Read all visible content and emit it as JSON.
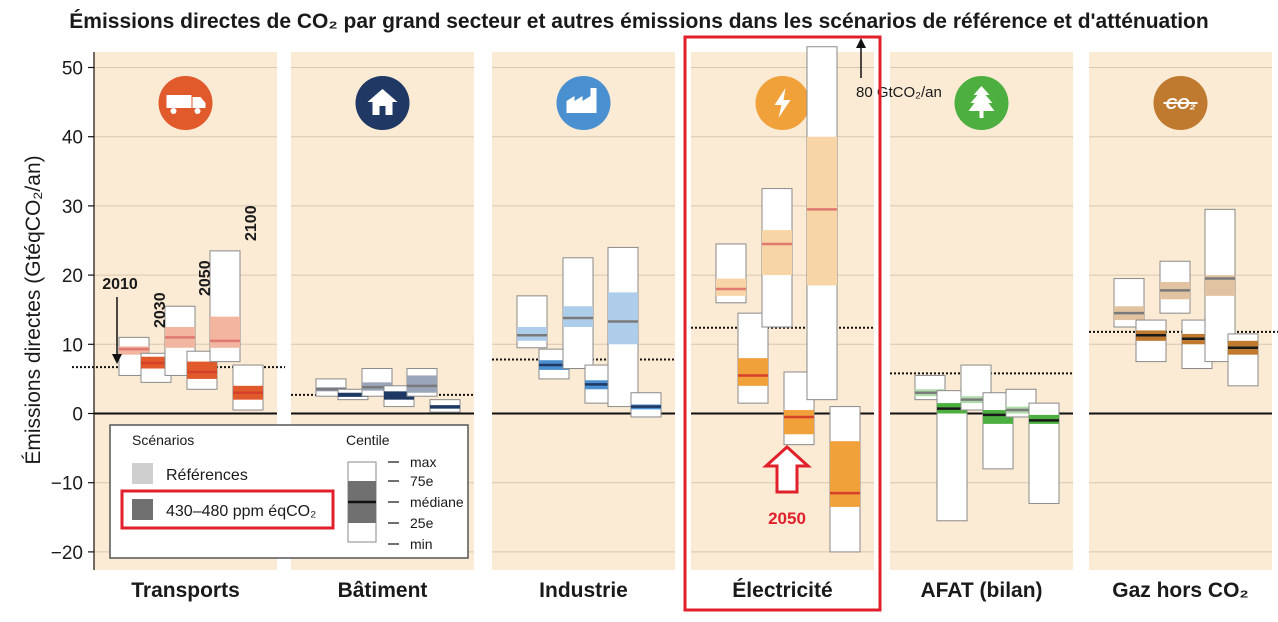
{
  "title": "Émissions directes de CO₂ par grand secteur et autres émissions dans les scénarios de référence et d'atténuation",
  "colors": {
    "panel_bg": "#fbead4",
    "highlight": "#e0202a",
    "zero_line": "#111111",
    "grid": "#d8c8b0"
  },
  "chart_data": {
    "type": "boxplot",
    "title": "Émissions directes de CO₂ par grand secteur et autres émissions dans les scénarios de référence et d'atténuation",
    "ylabel": "Émissions directes (GtéqCO₂/an)",
    "ylim": [
      -22,
      53
    ],
    "yticks": [
      -20,
      -10,
      0,
      10,
      20,
      30,
      40,
      50
    ],
    "grid": true,
    "year_labels": [
      "2010",
      "2030",
      "2050",
      "2100"
    ],
    "annotation_80": "80 GtCO₂/an",
    "highlight_label": "2050",
    "legend": {
      "scenarios_title": "Scénarios",
      "centile_title": "Centile",
      "reference": "Références",
      "mitigation": "430–480 ppm éqCO₂",
      "centiles": [
        "max",
        "75e",
        "médiane",
        "25e",
        "min"
      ]
    },
    "sectors": [
      {
        "name": "Transports",
        "icon": "truck-icon",
        "icon_color": "#e05a2b",
        "value_2010": 6.7,
        "boxes": [
          {
            "year": "2030",
            "scenario": "reference",
            "min": 5.5,
            "q1": 8.5,
            "median": 9.3,
            "q3": 9.7,
            "max": 11.0
          },
          {
            "year": "2030",
            "scenario": "mitigation",
            "min": 4.5,
            "q1": 6.5,
            "median": 7.3,
            "q3": 8.2,
            "max": 8.7
          },
          {
            "year": "2050",
            "scenario": "reference",
            "min": 5.5,
            "q1": 9.5,
            "median": 11.0,
            "q3": 12.5,
            "max": 15.5
          },
          {
            "year": "2050",
            "scenario": "mitigation",
            "min": 3.5,
            "q1": 5.0,
            "median": 6.0,
            "q3": 7.5,
            "max": 9.0
          },
          {
            "year": "2100",
            "scenario": "reference",
            "min": 7.5,
            "q1": 9.5,
            "median": 10.5,
            "q3": 14.0,
            "max": 23.5
          },
          {
            "year": "2100",
            "scenario": "mitigation",
            "min": 0.5,
            "q1": 2.0,
            "median": 3.0,
            "q3": 4.0,
            "max": 7.0
          }
        ]
      },
      {
        "name": "Bâtiment",
        "icon": "house-icon",
        "icon_color": "#1f3864",
        "value_2010": 2.7,
        "boxes": [
          {
            "year": "2030",
            "scenario": "reference",
            "min": 2.5,
            "q1": 3.2,
            "median": 3.5,
            "q3": 3.8,
            "max": 5.0
          },
          {
            "year": "2030",
            "scenario": "mitigation",
            "min": 2.0,
            "q1": 2.4,
            "median": 2.7,
            "q3": 3.0,
            "max": 3.5
          },
          {
            "year": "2050",
            "scenario": "reference",
            "min": 2.5,
            "q1": 3.3,
            "median": 3.8,
            "q3": 4.5,
            "max": 6.5
          },
          {
            "year": "2050",
            "scenario": "mitigation",
            "min": 1.0,
            "q1": 2.0,
            "median": 2.5,
            "q3": 3.2,
            "max": 4.0
          },
          {
            "year": "2100",
            "scenario": "reference",
            "min": 2.5,
            "q1": 3.0,
            "median": 4.0,
            "q3": 5.5,
            "max": 6.5
          },
          {
            "year": "2100",
            "scenario": "mitigation",
            "min": 0.2,
            "q1": 0.7,
            "median": 1.0,
            "q3": 1.2,
            "max": 2.0
          }
        ]
      },
      {
        "name": "Industrie",
        "icon": "factory-icon",
        "icon_color": "#4a8fd0",
        "value_2010": 7.8,
        "boxes": [
          {
            "year": "2030",
            "scenario": "reference",
            "min": 9.5,
            "q1": 10.5,
            "median": 11.3,
            "q3": 12.5,
            "max": 17.0
          },
          {
            "year": "2030",
            "scenario": "mitigation",
            "min": 5.0,
            "q1": 6.3,
            "median": 7.0,
            "q3": 7.7,
            "max": 9.3
          },
          {
            "year": "2050",
            "scenario": "reference",
            "min": 6.5,
            "q1": 12.5,
            "median": 13.8,
            "q3": 15.5,
            "max": 22.5
          },
          {
            "year": "2050",
            "scenario": "mitigation",
            "min": 1.5,
            "q1": 3.5,
            "median": 4.2,
            "q3": 4.8,
            "max": 7.0
          },
          {
            "year": "2100",
            "scenario": "reference",
            "min": 1.0,
            "q1": 10.0,
            "median": 13.3,
            "q3": 17.5,
            "max": 24.0
          },
          {
            "year": "2100",
            "scenario": "mitigation",
            "min": -0.5,
            "q1": 0.6,
            "median": 1.0,
            "q3": 1.3,
            "max": 3.0
          }
        ]
      },
      {
        "name": "Électricité",
        "icon": "lightning-icon",
        "icon_color": "#f0a13a",
        "value_2010": 12.4,
        "highlight": true,
        "arrow_max": 80,
        "boxes": [
          {
            "year": "2030",
            "scenario": "reference",
            "min": 16.0,
            "q1": 17.0,
            "median": 18.0,
            "q3": 19.5,
            "max": 24.5
          },
          {
            "year": "2030",
            "scenario": "mitigation",
            "min": 1.5,
            "q1": 4.0,
            "median": 5.5,
            "q3": 8.0,
            "max": 14.5
          },
          {
            "year": "2050",
            "scenario": "reference",
            "min": 12.5,
            "q1": 20.0,
            "median": 24.5,
            "q3": 26.5,
            "max": 32.5
          },
          {
            "year": "2050",
            "scenario": "mitigation",
            "min": -4.5,
            "q1": -3.0,
            "median": -0.5,
            "q3": 0.5,
            "max": 6.0
          },
          {
            "year": "2100",
            "scenario": "reference",
            "min": 2.0,
            "q1": 18.5,
            "median": 29.5,
            "q3": 40.0,
            "max": 53.0
          },
          {
            "year": "2100",
            "scenario": "mitigation",
            "min": -20.0,
            "q1": -13.5,
            "median": -11.5,
            "q3": -4.0,
            "max": 1.0
          }
        ]
      },
      {
        "name": "AFAT (bilan)",
        "icon": "tree-icon",
        "icon_color": "#4caf3f",
        "value_2010": 5.8,
        "boxes": [
          {
            "year": "2030",
            "scenario": "reference",
            "min": 2.0,
            "q1": 2.5,
            "median": 3.0,
            "q3": 3.5,
            "max": 5.5
          },
          {
            "year": "2030",
            "scenario": "mitigation",
            "min": -15.5,
            "q1": 0.0,
            "median": 0.7,
            "q3": 1.5,
            "max": 3.3
          },
          {
            "year": "2050",
            "scenario": "reference",
            "min": 0.5,
            "q1": 1.5,
            "median": 2.0,
            "q3": 2.5,
            "max": 7.0
          },
          {
            "year": "2050",
            "scenario": "mitigation",
            "min": -8.0,
            "q1": -1.5,
            "median": -0.2,
            "q3": 0.5,
            "max": 3.0
          },
          {
            "year": "2100",
            "scenario": "reference",
            "min": -0.5,
            "q1": 0.0,
            "median": 0.5,
            "q3": 1.0,
            "max": 3.5
          },
          {
            "year": "2100",
            "scenario": "mitigation",
            "min": -13.0,
            "q1": -1.5,
            "median": -1.0,
            "q3": -0.2,
            "max": 1.5
          }
        ]
      },
      {
        "name": "Gaz hors CO₂",
        "icon": "no-co2-icon",
        "icon_color": "#bf7a2f",
        "value_2010": 11.8,
        "boxes": [
          {
            "year": "2030",
            "scenario": "reference",
            "min": 12.5,
            "q1": 13.5,
            "median": 14.5,
            "q3": 15.5,
            "max": 19.5
          },
          {
            "year": "2030",
            "scenario": "mitigation",
            "min": 7.5,
            "q1": 10.5,
            "median": 11.3,
            "q3": 12.0,
            "max": 13.5
          },
          {
            "year": "2050",
            "scenario": "reference",
            "min": 14.5,
            "q1": 16.5,
            "median": 17.8,
            "q3": 19.0,
            "max": 22.0
          },
          {
            "year": "2050",
            "scenario": "mitigation",
            "min": 6.5,
            "q1": 10.0,
            "median": 10.8,
            "q3": 11.5,
            "max": 13.5
          },
          {
            "year": "2100",
            "scenario": "reference",
            "min": 7.5,
            "q1": 17.0,
            "median": 19.5,
            "q3": 20.0,
            "max": 29.5
          },
          {
            "year": "2100",
            "scenario": "mitigation",
            "min": 4.0,
            "q1": 8.5,
            "median": 9.5,
            "q3": 10.5,
            "max": 11.5
          }
        ]
      }
    ]
  }
}
